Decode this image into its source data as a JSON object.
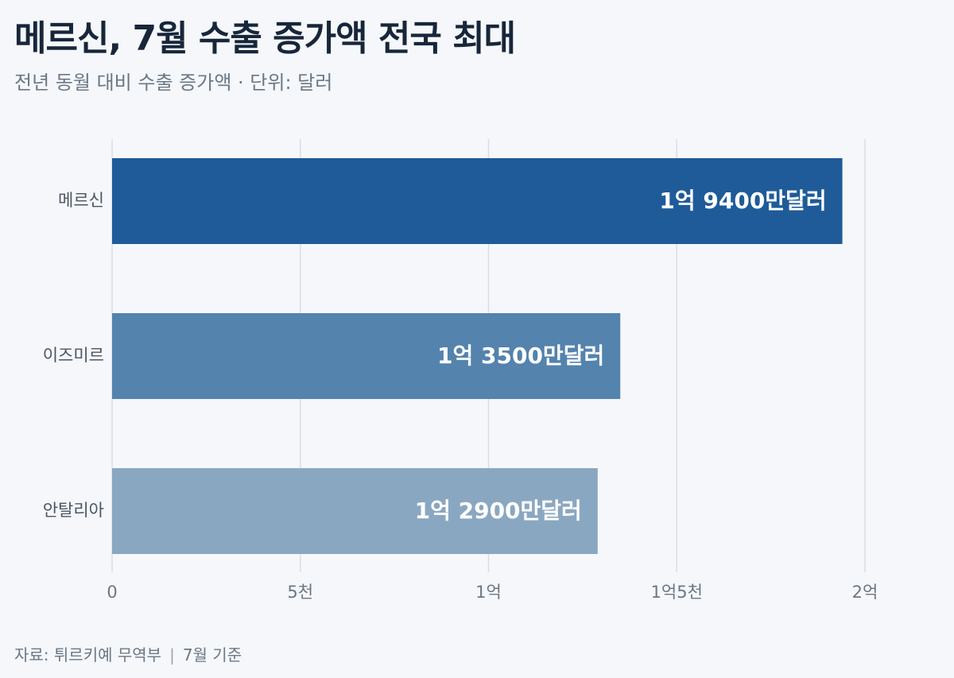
{
  "title": "메르신, 7월 수출 증가액 전국 최대",
  "subtitle": "전년 동월 대비 수출 증가액 · 단위: 달러",
  "footer": {
    "source": "자료: 튀르키예 무역부",
    "separator": "|",
    "note": "7월 기준"
  },
  "colors": {
    "grid": "#d9dee5",
    "axis_text": "#6b7785",
    "category_text": "#4a5563",
    "bar_label": "#ffffff"
  },
  "chart_data": {
    "type": "bar",
    "orientation": "horizontal",
    "categories": [
      "메르신",
      "이즈미르",
      "안탈리아"
    ],
    "values": [
      194000000,
      135000000,
      129000000
    ],
    "value_labels": [
      "1억 9400만달러",
      "1억 3500만달러",
      "1억 2900만달러"
    ],
    "bar_colors": [
      "#1f5b98",
      "#5483ad",
      "#8aa7c2"
    ],
    "xlim": [
      0,
      200000000
    ],
    "xticks": [
      0,
      50000000,
      100000000,
      150000000,
      200000000
    ],
    "xtick_labels": [
      "0",
      "5천",
      "1억",
      "1억5천",
      "2억"
    ],
    "grid": true,
    "legend": "none"
  }
}
